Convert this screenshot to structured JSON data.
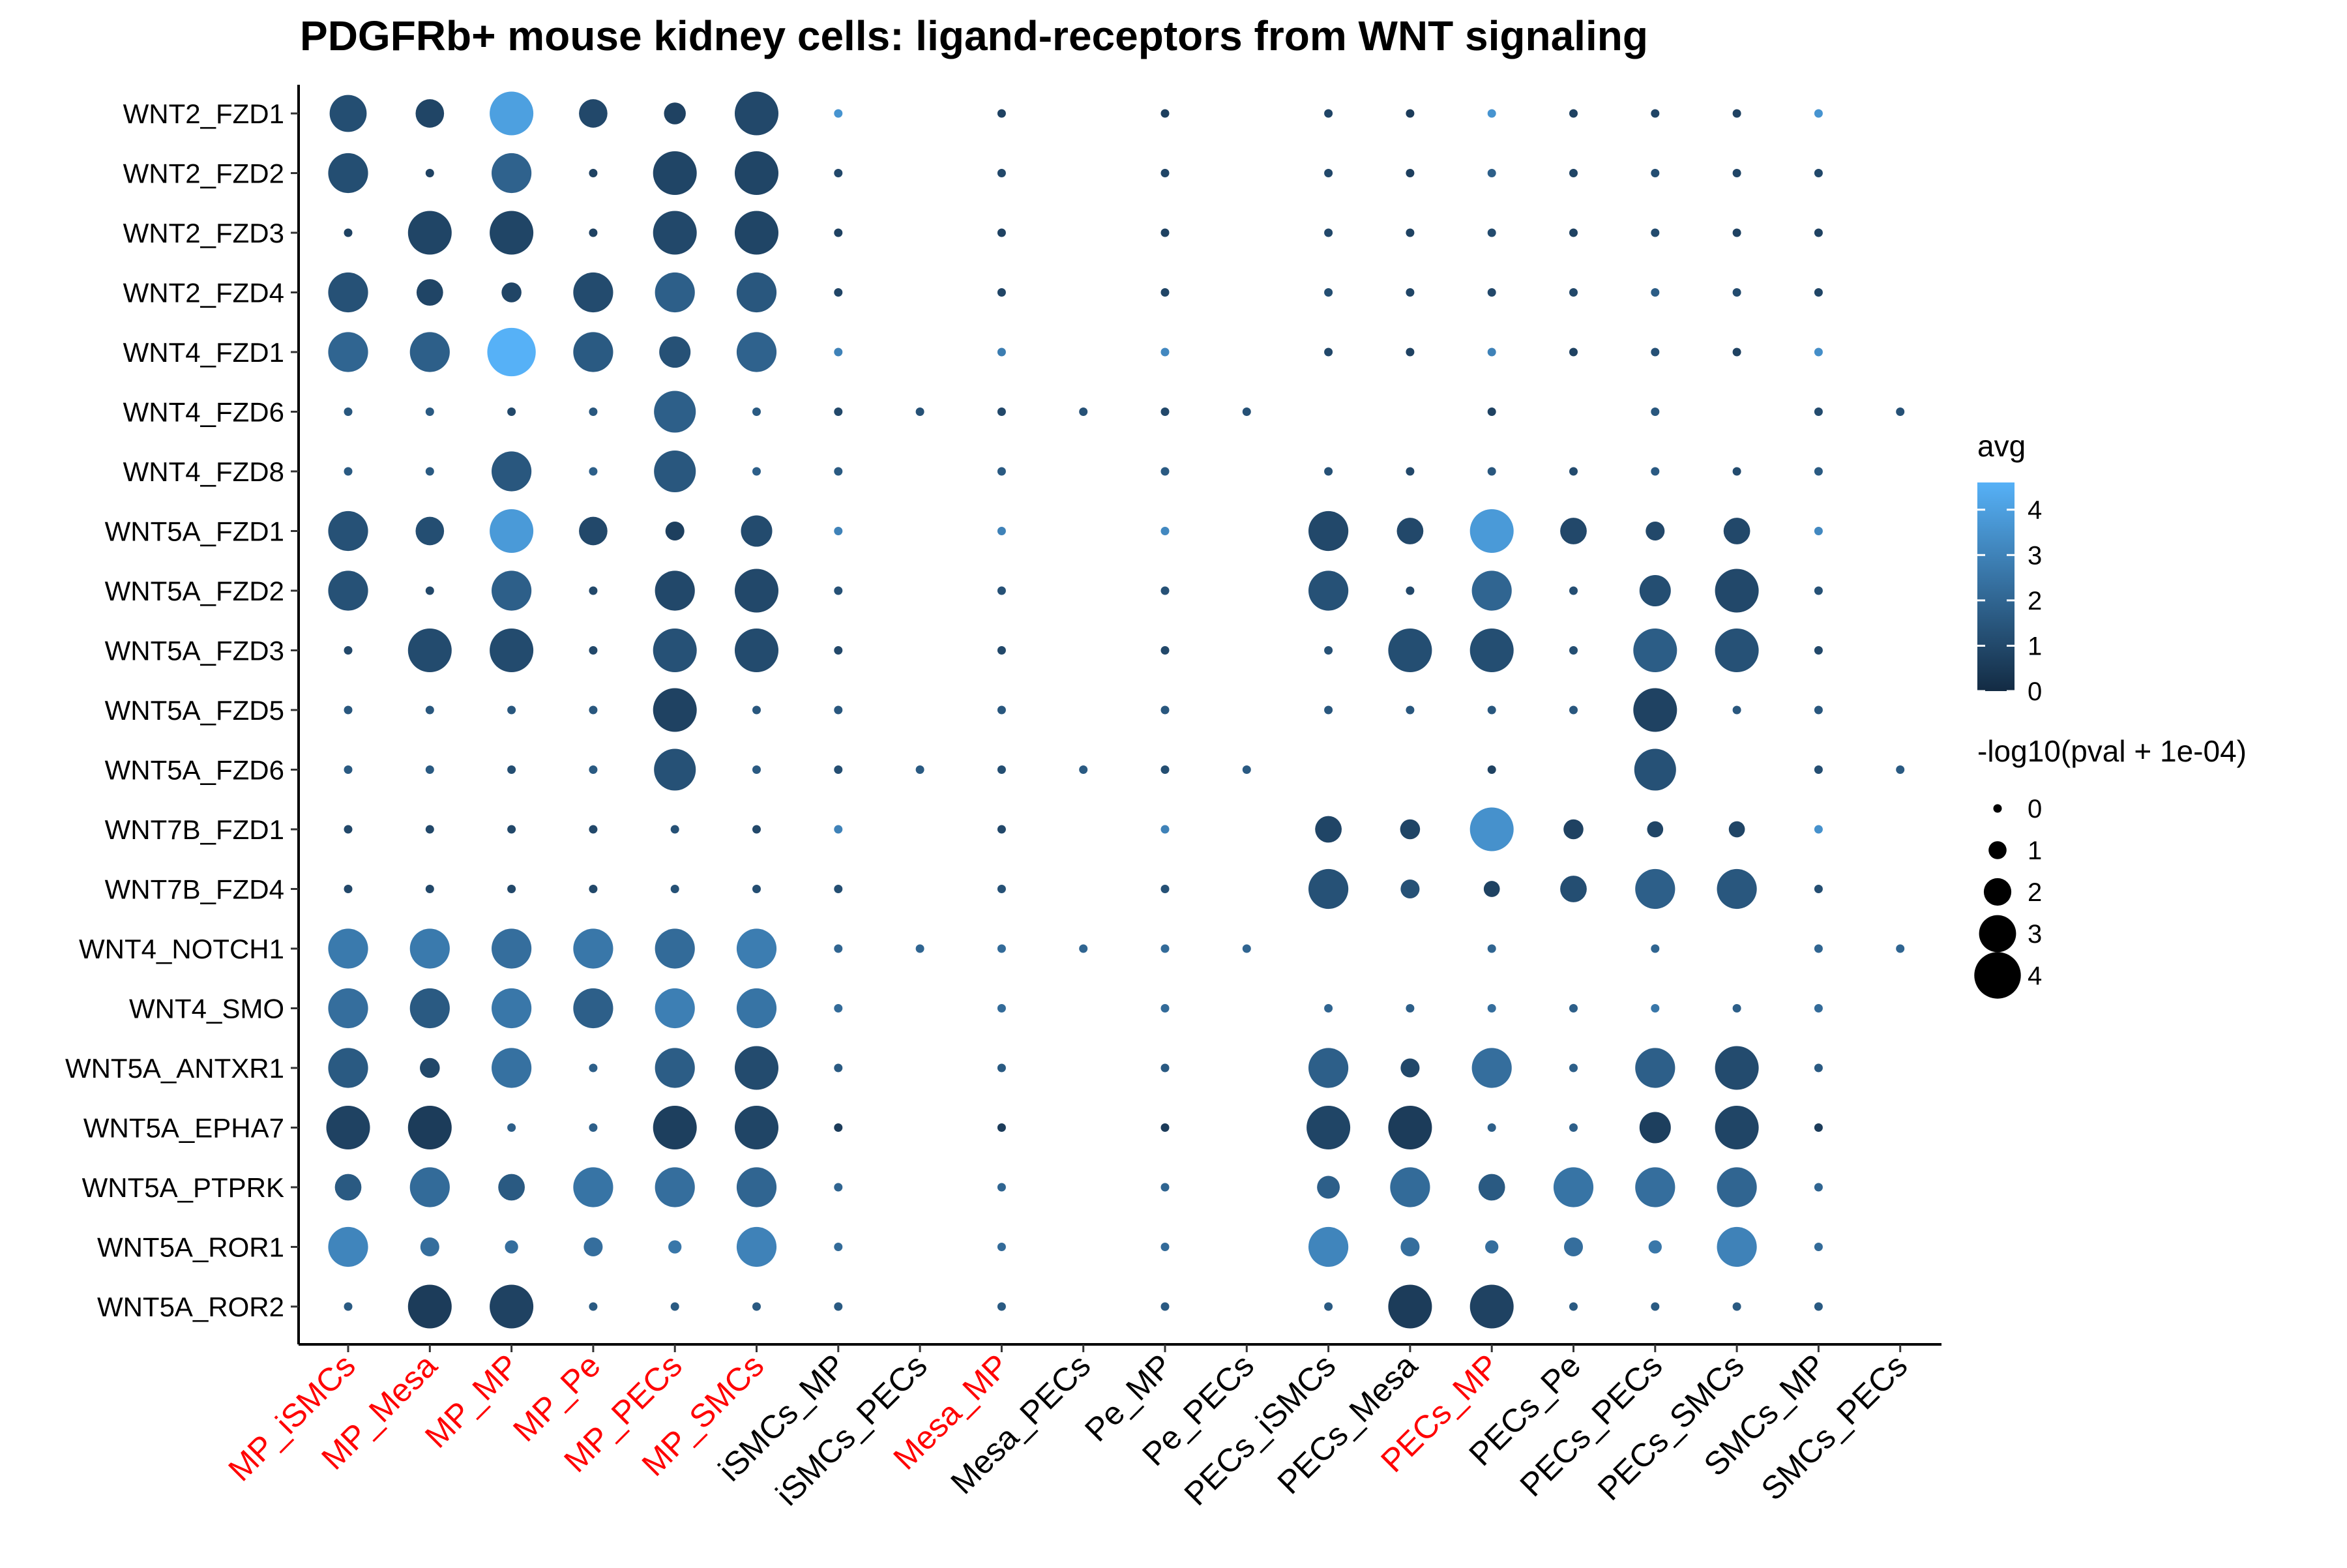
{
  "chart_data": {
    "type": "scatter",
    "subtype": "dot-plot",
    "title": "PDGFRb+ mouse kidney cells: ligand-receptors from WNT signaling",
    "xlabel": "",
    "ylabel": "",
    "x_categories": [
      "MP_iSMCs",
      "MP_Mesa",
      "MP_MP",
      "MP_Pe",
      "MP_PECs",
      "MP_SMCs",
      "iSMCs_MP",
      "iSMCs_PECs",
      "Mesa_MP",
      "Mesa_PECs",
      "Pe_MP",
      "Pe_PECs",
      "PECs_iSMCs",
      "PECs_Mesa",
      "PECs_MP",
      "PECs_Pe",
      "PECs_PECs",
      "PECs_SMCs",
      "SMCs_MP",
      "SMCs_PECs"
    ],
    "x_highlighted": [
      "MP_iSMCs",
      "MP_Mesa",
      "MP_MP",
      "MP_Pe",
      "MP_PECs",
      "MP_SMCs",
      "Mesa_MP",
      "PECs_MP"
    ],
    "highlight_color": "#ff0000",
    "y_categories": [
      "WNT2_FZD1",
      "WNT2_FZD2",
      "WNT2_FZD3",
      "WNT2_FZD4",
      "WNT4_FZD1",
      "WNT4_FZD6",
      "WNT4_FZD8",
      "WNT5A_FZD1",
      "WNT5A_FZD2",
      "WNT5A_FZD3",
      "WNT5A_FZD5",
      "WNT5A_FZD6",
      "WNT7B_FZD1",
      "WNT7B_FZD4",
      "WNT4_NOTCH1",
      "WNT4_SMO",
      "WNT5A_ANTXR1",
      "WNT5A_EPHA7",
      "WNT5A_PTPRK",
      "WNT5A_ROR1",
      "WNT5A_ROR2"
    ],
    "size_by": "-log10(pval + 1e-04)",
    "color_by": "avg",
    "size_matrix": [
      [
        3.0,
        2.1,
        3.7,
        2.1,
        1.4,
        3.7,
        0,
        null,
        0,
        null,
        0,
        null,
        0,
        0,
        0,
        0,
        0,
        0,
        0,
        null
      ],
      [
        3.3,
        0,
        3.3,
        0,
        3.7,
        3.7,
        0,
        null,
        0,
        null,
        0,
        null,
        0,
        0,
        0,
        0,
        0,
        0,
        0,
        null
      ],
      [
        0,
        3.7,
        3.7,
        0,
        3.7,
        3.7,
        0,
        null,
        0,
        null,
        0,
        null,
        0,
        0,
        0,
        0,
        0,
        0,
        0,
        null
      ],
      [
        3.3,
        1.9,
        1.2,
        3.3,
        3.3,
        3.3,
        0,
        null,
        0,
        null,
        0,
        null,
        0,
        0,
        0,
        0,
        0,
        0,
        0,
        null
      ],
      [
        3.3,
        3.3,
        4.2,
        3.3,
        2.4,
        3.3,
        0,
        null,
        0,
        null,
        0,
        null,
        0,
        0,
        0,
        0,
        0,
        0,
        0,
        null
      ],
      [
        0,
        0,
        0,
        0,
        3.5,
        0,
        0,
        0,
        0,
        0,
        0,
        0,
        null,
        null,
        0,
        null,
        0,
        null,
        0,
        0
      ],
      [
        0,
        0,
        3.3,
        0,
        3.5,
        0,
        0,
        null,
        0,
        null,
        0,
        null,
        0,
        0,
        0,
        0,
        0,
        0,
        0,
        null
      ],
      [
        3.3,
        2.1,
        3.7,
        2.1,
        1.1,
        2.4,
        0,
        null,
        0,
        null,
        0,
        null,
        3.3,
        1.9,
        3.7,
        1.9,
        1.1,
        1.9,
        0,
        null
      ],
      [
        3.3,
        0,
        3.3,
        0,
        3.3,
        3.7,
        0,
        null,
        0,
        null,
        0,
        null,
        3.3,
        0,
        3.3,
        0,
        2.4,
        3.7,
        0,
        null
      ],
      [
        0,
        3.7,
        3.7,
        0,
        3.7,
        3.7,
        0,
        null,
        0,
        null,
        0,
        null,
        0,
        3.7,
        3.7,
        0,
        3.7,
        3.7,
        0,
        null
      ],
      [
        0,
        0,
        0,
        0,
        3.7,
        0,
        0,
        null,
        0,
        null,
        0,
        null,
        0,
        0,
        0,
        0,
        3.7,
        0,
        0,
        null
      ],
      [
        0,
        0,
        0,
        0,
        3.5,
        0,
        0,
        0,
        0,
        0,
        0,
        0,
        null,
        null,
        0,
        null,
        3.5,
        null,
        0,
        0
      ],
      [
        0,
        0,
        0,
        0,
        0,
        0,
        0,
        null,
        0,
        null,
        0,
        null,
        1.9,
        1.2,
        3.7,
        1.2,
        0.8,
        0.8,
        0,
        null
      ],
      [
        0,
        0,
        0,
        0,
        0,
        0,
        0,
        null,
        0,
        null,
        0,
        null,
        3.3,
        1.1,
        0.8,
        1.9,
        3.3,
        3.3,
        0,
        null
      ],
      [
        3.3,
        3.3,
        3.3,
        3.3,
        3.3,
        3.3,
        0,
        0,
        0,
        0,
        0,
        0,
        null,
        null,
        0,
        null,
        0,
        null,
        0,
        0
      ],
      [
        3.3,
        3.3,
        3.3,
        3.3,
        3.3,
        3.3,
        0,
        null,
        0,
        null,
        0,
        null,
        0,
        0,
        0,
        0,
        0,
        0,
        0,
        null
      ],
      [
        3.3,
        1.2,
        3.3,
        0,
        3.3,
        3.7,
        0,
        null,
        0,
        null,
        0,
        null,
        3.3,
        1.1,
        3.3,
        0,
        3.3,
        3.7,
        0,
        null
      ],
      [
        3.7,
        3.7,
        0,
        0,
        3.7,
        3.7,
        0,
        null,
        0,
        null,
        0,
        null,
        3.7,
        3.7,
        0,
        0,
        2.4,
        3.7,
        0,
        null
      ],
      [
        1.9,
        3.3,
        1.9,
        3.3,
        3.3,
        3.3,
        0,
        null,
        0,
        null,
        0,
        null,
        1.5,
        3.3,
        1.9,
        3.3,
        3.3,
        3.3,
        0,
        null
      ],
      [
        3.3,
        1.1,
        0.5,
        1.1,
        0.5,
        3.3,
        0,
        null,
        0,
        null,
        0,
        null,
        3.3,
        1.1,
        0.5,
        1.1,
        0.5,
        3.3,
        0,
        null
      ],
      [
        0,
        3.7,
        3.7,
        0,
        0,
        0,
        0,
        null,
        0,
        null,
        0,
        null,
        0,
        3.7,
        3.7,
        0,
        0,
        0,
        0,
        null
      ]
    ],
    "avg_matrix": [
      [
        1.2,
        0.9,
        4.0,
        1.0,
        0.8,
        1.0,
        3.6,
        null,
        0.8,
        null,
        0.7,
        null,
        0.9,
        0.6,
        3.6,
        0.8,
        0.9,
        0.8,
        3.6,
        null
      ],
      [
        1.2,
        0.8,
        1.9,
        0.8,
        0.9,
        0.9,
        1.0,
        null,
        1.0,
        null,
        0.9,
        null,
        1.0,
        0.7,
        1.8,
        0.9,
        1.2,
        0.9,
        1.0,
        null
      ],
      [
        0.8,
        0.9,
        0.9,
        0.8,
        1.0,
        0.9,
        0.8,
        null,
        0.8,
        null,
        0.8,
        null,
        1.0,
        0.8,
        1.1,
        0.8,
        1.1,
        0.8,
        0.8,
        null
      ],
      [
        1.3,
        0.9,
        0.9,
        1.1,
        1.8,
        1.5,
        0.9,
        null,
        0.9,
        null,
        0.9,
        null,
        1.2,
        0.9,
        1.0,
        1.0,
        1.7,
        1.1,
        0.9,
        null
      ],
      [
        2.0,
        1.8,
        4.6,
        1.6,
        1.3,
        1.9,
        3.0,
        null,
        2.8,
        null,
        3.2,
        null,
        1.0,
        0.8,
        3.0,
        0.8,
        1.3,
        0.8,
        3.4,
        null
      ],
      [
        1.5,
        1.6,
        1.0,
        1.5,
        1.8,
        1.6,
        1.0,
        1.3,
        1.0,
        1.3,
        1.0,
        1.3,
        null,
        null,
        0.8,
        null,
        1.5,
        null,
        1.1,
        1.3
      ],
      [
        1.6,
        1.6,
        1.5,
        1.8,
        1.5,
        1.8,
        1.6,
        null,
        1.6,
        null,
        1.6,
        null,
        1.3,
        1.0,
        1.5,
        1.1,
        1.6,
        1.1,
        1.6,
        null
      ],
      [
        1.3,
        1.2,
        3.8,
        1.0,
        0.7,
        1.1,
        3.0,
        null,
        3.0,
        null,
        3.2,
        null,
        1.0,
        1.0,
        3.8,
        1.0,
        1.0,
        1.0,
        3.2,
        null
      ],
      [
        1.3,
        1.0,
        1.8,
        1.0,
        1.0,
        1.0,
        1.3,
        null,
        1.3,
        null,
        1.3,
        null,
        1.3,
        1.0,
        2.0,
        1.2,
        1.2,
        1.0,
        1.3,
        null
      ],
      [
        1.0,
        1.1,
        1.1,
        1.0,
        1.3,
        1.1,
        1.0,
        null,
        1.0,
        null,
        1.0,
        null,
        1.3,
        1.2,
        1.2,
        1.2,
        1.7,
        1.3,
        1.0,
        null
      ],
      [
        1.5,
        1.5,
        1.5,
        1.5,
        0.8,
        1.5,
        1.5,
        null,
        1.5,
        null,
        1.5,
        null,
        1.5,
        1.5,
        1.5,
        1.5,
        0.8,
        1.5,
        1.5,
        null
      ],
      [
        1.6,
        1.6,
        1.2,
        1.6,
        1.3,
        1.6,
        1.2,
        1.6,
        1.2,
        1.6,
        1.2,
        1.6,
        null,
        null,
        0.8,
        null,
        1.3,
        null,
        1.2,
        1.6
      ],
      [
        1.0,
        1.0,
        1.0,
        1.0,
        1.3,
        1.0,
        3.0,
        null,
        1.0,
        null,
        3.0,
        null,
        0.9,
        0.9,
        3.5,
        0.8,
        0.9,
        0.9,
        3.5,
        null
      ],
      [
        1.0,
        1.0,
        1.0,
        1.0,
        1.3,
        1.2,
        1.2,
        null,
        1.3,
        null,
        1.3,
        null,
        1.3,
        1.3,
        0.8,
        1.2,
        1.8,
        1.5,
        1.2,
        null
      ],
      [
        2.7,
        2.7,
        2.3,
        2.6,
        2.2,
        2.8,
        2.0,
        2.0,
        2.2,
        2.0,
        2.2,
        2.0,
        null,
        null,
        2.0,
        null,
        2.0,
        null,
        2.0,
        2.0
      ],
      [
        2.3,
        1.6,
        2.6,
        1.8,
        2.9,
        2.5,
        2.2,
        null,
        2.2,
        null,
        2.2,
        null,
        2.0,
        1.8,
        2.3,
        1.8,
        2.6,
        1.8,
        2.2,
        null
      ],
      [
        1.6,
        1.0,
        2.4,
        1.8,
        1.7,
        1.1,
        1.6,
        null,
        1.6,
        null,
        1.6,
        null,
        1.8,
        1.0,
        2.3,
        1.8,
        1.8,
        1.1,
        1.6,
        null
      ],
      [
        0.8,
        0.6,
        1.8,
        1.8,
        0.7,
        0.9,
        0.6,
        null,
        0.6,
        null,
        0.6,
        null,
        0.9,
        0.6,
        1.8,
        1.8,
        0.7,
        0.9,
        0.6,
        null
      ],
      [
        1.6,
        2.2,
        1.6,
        2.5,
        2.3,
        2.0,
        2.0,
        null,
        2.0,
        null,
        2.0,
        null,
        1.8,
        2.2,
        1.6,
        2.5,
        2.3,
        2.0,
        2.0,
        null
      ],
      [
        3.1,
        2.3,
        2.3,
        2.3,
        2.6,
        3.0,
        2.2,
        null,
        2.2,
        null,
        2.2,
        null,
        3.1,
        2.3,
        2.3,
        2.3,
        2.6,
        3.0,
        2.2,
        null
      ],
      [
        1.6,
        0.6,
        0.8,
        1.6,
        1.6,
        1.6,
        1.6,
        null,
        1.6,
        null,
        1.6,
        null,
        1.6,
        0.6,
        0.8,
        1.6,
        1.6,
        1.6,
        1.6,
        null
      ]
    ],
    "color_scale": {
      "low": "#132b43",
      "high": "#56b1f7",
      "domain": [
        0,
        4.6
      ]
    },
    "legend": {
      "position": "right",
      "color_title": "avg",
      "color_ticks": [
        "4",
        "3",
        "2",
        "1",
        "0"
      ],
      "size_title": "-log10(pval + 1e-04)",
      "size_ticks": [
        "0",
        "1",
        "2",
        "3",
        "4"
      ]
    }
  }
}
